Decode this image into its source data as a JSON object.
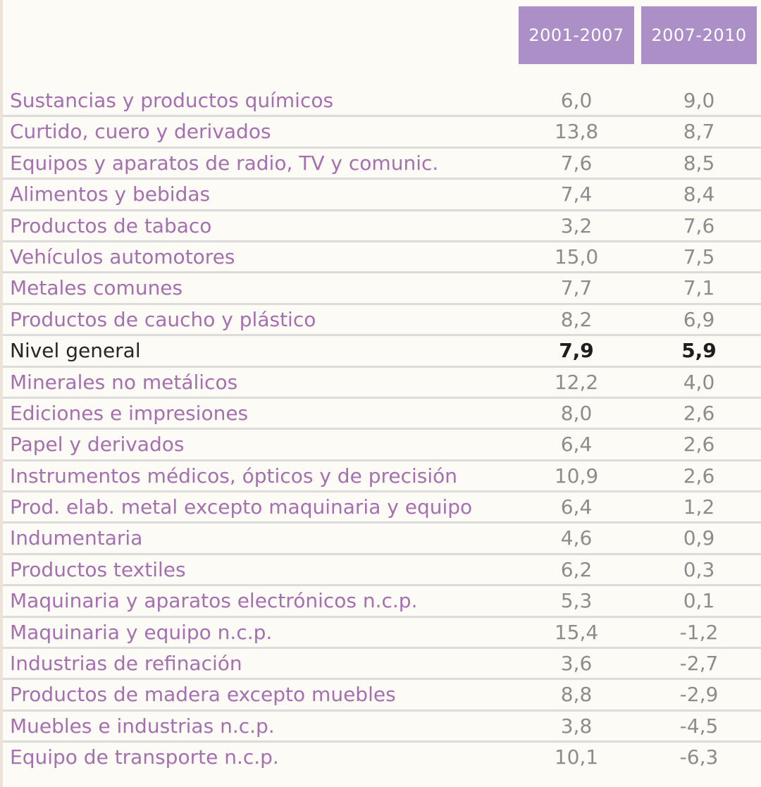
{
  "colors": {
    "header_bg": "#ab8fc6",
    "label": "#a56fb0",
    "value": "#8c8c8c",
    "highlight": "#262626",
    "divider": "#dcdcdc"
  },
  "chart_data": {
    "type": "table",
    "columns": [
      "2001-2007",
      "2007-2010"
    ],
    "highlight_row": "Nivel general",
    "rows": [
      {
        "label": "Sustancias y productos químicos",
        "v1": "6,0",
        "v2": "9,0"
      },
      {
        "label": "Curtido, cuero y derivados",
        "v1": "13,8",
        "v2": "8,7"
      },
      {
        "label": "Equipos y aparatos de radio, TV y comunic.",
        "v1": "7,6",
        "v2": "8,5"
      },
      {
        "label": "Alimentos y bebidas",
        "v1": "7,4",
        "v2": "8,4"
      },
      {
        "label": "Productos de tabaco",
        "v1": "3,2",
        "v2": "7,6"
      },
      {
        "label": "Vehículos automotores",
        "v1": "15,0",
        "v2": "7,5"
      },
      {
        "label": "Metales comunes",
        "v1": "7,7",
        "v2": "7,1"
      },
      {
        "label": "Productos de caucho y plástico",
        "v1": "8,2",
        "v2": "6,9"
      },
      {
        "label": "Nivel general",
        "v1": "7,9",
        "v2": "5,9"
      },
      {
        "label": "Minerales no metálicos",
        "v1": "12,2",
        "v2": "4,0"
      },
      {
        "label": "Ediciones e impresiones",
        "v1": "8,0",
        "v2": "2,6"
      },
      {
        "label": "Papel y derivados",
        "v1": "6,4",
        "v2": "2,6"
      },
      {
        "label": "Instrumentos médicos, ópticos y de precisión",
        "v1": "10,9",
        "v2": "2,6"
      },
      {
        "label": "Prod. elab. metal excepto maquinaria y equipo",
        "v1": "6,4",
        "v2": "1,2"
      },
      {
        "label": "Indumentaria",
        "v1": "4,6",
        "v2": "0,9"
      },
      {
        "label": "Productos textiles",
        "v1": "6,2",
        "v2": "0,3"
      },
      {
        "label": "Maquinaria y aparatos electrónicos n.c.p.",
        "v1": "5,3",
        "v2": "0,1"
      },
      {
        "label": "Maquinaria y equipo n.c.p.",
        "v1": "15,4",
        "v2": "-1,2"
      },
      {
        "label": "Industrias de refinación",
        "v1": "3,6",
        "v2": "-2,7"
      },
      {
        "label": "Productos de madera excepto muebles",
        "v1": "8,8",
        "v2": "-2,9"
      },
      {
        "label": "Muebles e industrias n.c.p.",
        "v1": "3,8",
        "v2": "-4,5"
      },
      {
        "label": "Equipo de transporte n.c.p.",
        "v1": "10,1",
        "v2": "-6,3"
      }
    ]
  }
}
